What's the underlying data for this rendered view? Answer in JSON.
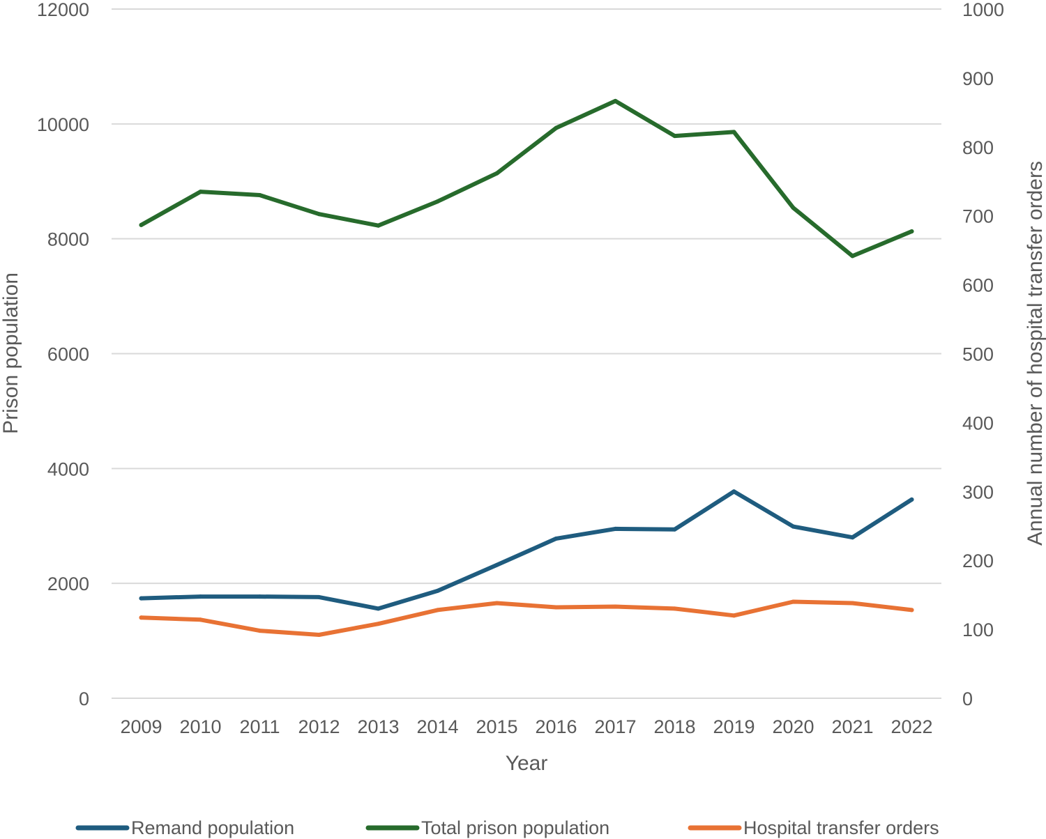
{
  "chart_data": {
    "type": "line",
    "title": "",
    "xlabel": "Year",
    "ylabel_left": "Prison population",
    "ylabel_right": "Annual number of hospital transfer orders",
    "x": [
      "2009",
      "2010",
      "2011",
      "2012",
      "2013",
      "2014",
      "2015",
      "2016",
      "2017",
      "2018",
      "2019",
      "2020",
      "2021",
      "2022"
    ],
    "ylim_left": [
      0,
      12000
    ],
    "ylim_right": [
      0,
      1000
    ],
    "yticks_left": [
      "0",
      "2000",
      "4000",
      "6000",
      "8000",
      "10000",
      "12000"
    ],
    "yticks_right": [
      "0",
      "100",
      "200",
      "300",
      "400",
      "500",
      "600",
      "700",
      "800",
      "900",
      "1000"
    ],
    "grid": true,
    "legend_position": "bottom",
    "series": [
      {
        "name": "Remand population",
        "axis": "left",
        "color": "#1f5c7f",
        "values": [
          1740,
          1770,
          1770,
          1760,
          1560,
          1870,
          2320,
          2780,
          2950,
          2940,
          3600,
          2990,
          2800,
          3460
        ]
      },
      {
        "name": "Total prison population",
        "axis": "left",
        "color": "#276b2c",
        "values": [
          8240,
          8820,
          8760,
          8430,
          8230,
          8650,
          9140,
          9930,
          10400,
          9790,
          9860,
          8540,
          7700,
          8130
        ]
      },
      {
        "name": "Hospital transfer orders",
        "axis": "right",
        "color": "#e87234",
        "values": [
          117,
          114,
          98,
          92,
          108,
          128,
          138,
          132,
          133,
          130,
          120,
          140,
          138,
          128
        ]
      }
    ]
  }
}
